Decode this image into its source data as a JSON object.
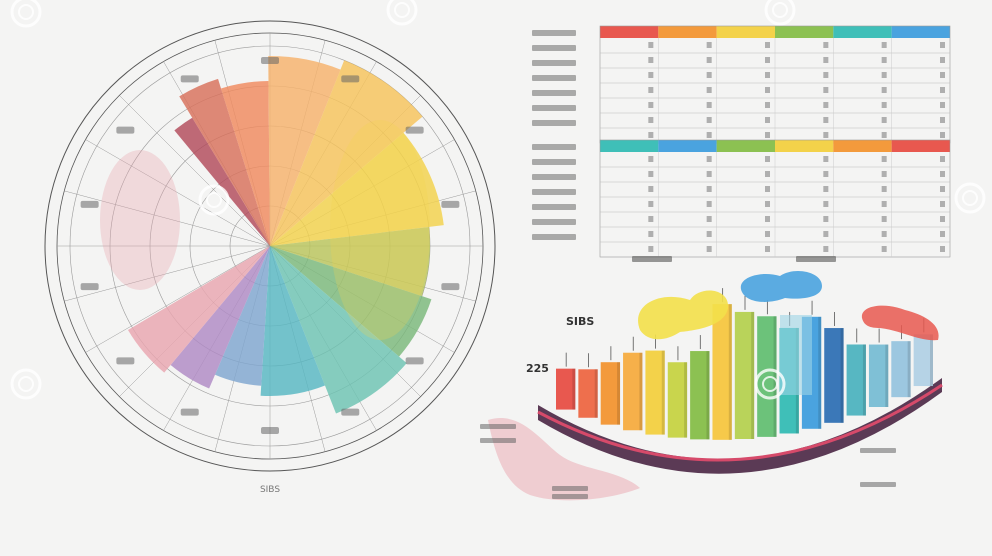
{
  "palette": {
    "red": "#e8584f",
    "pink": "#e9a6b0",
    "orange": "#f39a3c",
    "yellow": "#f3d24a",
    "green": "#8cc152",
    "teal": "#3fbfb8",
    "blue": "#4aa3df",
    "navy": "#3b5a8a",
    "purple": "#8e6bb0",
    "line": "#555555",
    "background": "#f4f4f3"
  },
  "watermark": "dreamstime",
  "chart_data": [
    {
      "type": "pie",
      "style": "radial fan chart inside a circular grid of 5 rings and 24 spokes",
      "title": "",
      "slices": [
        {
          "value": 3,
          "color": "#b24a5a"
        },
        {
          "value": 5,
          "color": "#d8705a"
        },
        {
          "value": 6,
          "color": "#f08a5e"
        },
        {
          "value": 8,
          "color": "#f6b26b"
        },
        {
          "value": 10,
          "color": "#f7c35a"
        },
        {
          "value": 12,
          "color": "#f3d24a"
        },
        {
          "value": 9,
          "color": "#b9c45a"
        },
        {
          "value": 8,
          "color": "#7ab87a"
        },
        {
          "value": 10,
          "color": "#6cc3b2"
        },
        {
          "value": 9,
          "color": "#57b7c2"
        },
        {
          "value": 7,
          "color": "#7fa6cf"
        },
        {
          "value": 6,
          "color": "#b08ac4"
        },
        {
          "value": 7,
          "color": "#e9a6b0"
        }
      ],
      "rim_label_count": 14,
      "bottom_label": "SIBS"
    },
    {
      "type": "table",
      "header_colors": [
        "#e8584f",
        "#f39a3c",
        "#f3d24a",
        "#8cc152",
        "#3fbfb8",
        "#4aa3df"
      ],
      "rows": 7,
      "columns": 6,
      "row_label_count": 7
    },
    {
      "type": "table",
      "header_colors": [
        "#3fbfb8",
        "#4aa3df",
        "#8cc152",
        "#f3d24a",
        "#f39a3c",
        "#e8584f"
      ],
      "rows": 7,
      "columns": 6,
      "row_label_count": 7
    },
    {
      "type": "bar",
      "style": "3D bars on a curved base with paint-splash clouds above",
      "title": "SIBS",
      "ylabel": "225",
      "values": [
        {
          "value": 38,
          "color": "#e8584f"
        },
        {
          "value": 45,
          "color": "#ee6f4d"
        },
        {
          "value": 58,
          "color": "#f39a3c"
        },
        {
          "value": 72,
          "color": "#f6b04a"
        },
        {
          "value": 78,
          "color": "#f3d24a"
        },
        {
          "value": 70,
          "color": "#c9d54d"
        },
        {
          "value": 82,
          "color": "#8cc152"
        },
        {
          "value": 126,
          "color": "#f6c94a"
        },
        {
          "value": 118,
          "color": "#b9d35a"
        },
        {
          "value": 112,
          "color": "#6cc27a"
        },
        {
          "value": 98,
          "color": "#3fbfb8"
        },
        {
          "value": 104,
          "color": "#4aa3df"
        },
        {
          "value": 88,
          "color": "#3b78b8"
        },
        {
          "value": 66,
          "color": "#57b7c2"
        },
        {
          "value": 58,
          "color": "#7fc0d6"
        },
        {
          "value": 52,
          "color": "#9cc7e0"
        },
        {
          "value": 48,
          "color": "#b6d3e6"
        }
      ]
    }
  ]
}
